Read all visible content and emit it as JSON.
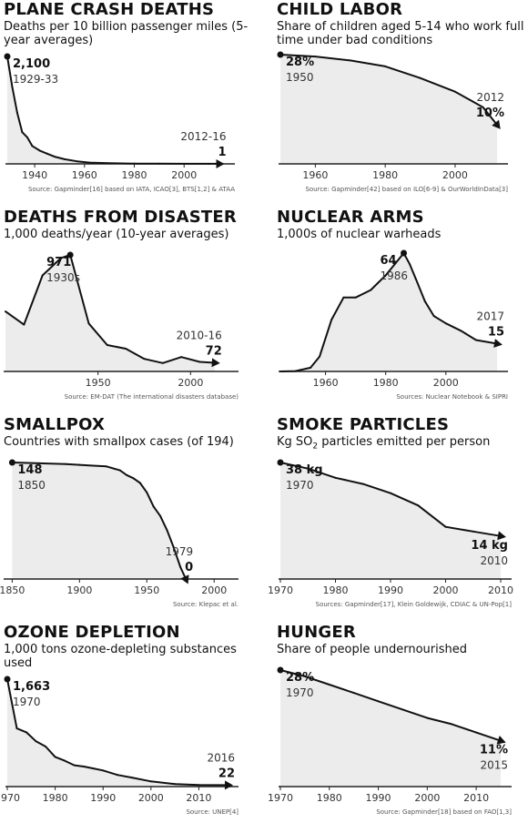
{
  "chart_data": [
    {
      "type": "area",
      "title": "PLANE CRASH DEATHS",
      "subtitle": "Deaths per 10 billion passenger miles (5-year averages)",
      "x": [
        1929,
        1931,
        1933,
        1935,
        1937,
        1939,
        1942,
        1945,
        1948,
        1952,
        1957,
        1962,
        1970,
        1980,
        1990,
        2000,
        2010,
        2014
      ],
      "values": [
        2100,
        1500,
        1000,
        620,
        520,
        350,
        260,
        200,
        140,
        90,
        50,
        25,
        12,
        6,
        4,
        2,
        1,
        1
      ],
      "xlim": [
        1929,
        2016
      ],
      "ylim": [
        0,
        2100
      ],
      "xticks": [
        "1940",
        "1960",
        "1980",
        "2000"
      ],
      "xtick_values": [
        1940,
        1960,
        1980,
        2000
      ],
      "start_label": {
        "value": "2,100",
        "note": "1929-33"
      },
      "end_label": {
        "value": "1",
        "note": "2012-16"
      },
      "source": "Source: Gapminder[16] based on IATA, ICAO[3], BTS[1,2] & ATAA"
    },
    {
      "type": "area",
      "title": "CHILD LABOR",
      "subtitle": "Share of children aged 5-14 who work full time under bad conditions",
      "x": [
        1950,
        1960,
        1970,
        1980,
        1990,
        2000,
        2005,
        2008,
        2012
      ],
      "values": [
        28,
        27.5,
        26.5,
        25,
        22,
        18.5,
        16,
        14.5,
        10
      ],
      "xlim": [
        1950,
        2012
      ],
      "ylim": [
        0,
        28
      ],
      "xticks": [
        "1960",
        "1980",
        "2000"
      ],
      "xtick_values": [
        1960,
        1980,
        2000
      ],
      "start_label": {
        "value": "28%",
        "note": "1950"
      },
      "end_label": {
        "value": "10%",
        "note": "2012"
      },
      "source": "Source: Gapminder[42] based on ILO[6-9] & OurWorldInData[3]"
    },
    {
      "type": "area",
      "title": "DEATHS FROM DISASTER",
      "subtitle": "1,000 deaths/year (10-year averages)",
      "x": [
        1900,
        1910,
        1920,
        1930,
        1935,
        1945,
        1955,
        1965,
        1975,
        1985,
        1995,
        2005,
        2013
      ],
      "values": [
        500,
        390,
        800,
        945,
        971,
        400,
        220,
        190,
        105,
        70,
        120,
        80,
        72
      ],
      "xlim": [
        1900,
        2020
      ],
      "ylim": [
        0,
        971
      ],
      "xticks": [
        "1950",
        "2000"
      ],
      "xtick_values": [
        1950,
        2000
      ],
      "start_label": {
        "value": "971",
        "note": "1930s"
      },
      "end_label": {
        "value": "72",
        "note": "2010-16"
      },
      "source": "Source: EM-DAT (The international disasters database)"
    },
    {
      "type": "area",
      "title": "NUCLEAR ARMS",
      "subtitle": "1,000s of nuclear warheads",
      "x": [
        1945,
        1950,
        1955,
        1958,
        1962,
        1966,
        1970,
        1975,
        1980,
        1983,
        1986,
        1988,
        1990,
        1993,
        1996,
        2000,
        2005,
        2010,
        2017
      ],
      "values": [
        0,
        0.2,
        2,
        8,
        28,
        40,
        40,
        44,
        52,
        58,
        64,
        58,
        50,
        38,
        30,
        26,
        22,
        17,
        15
      ],
      "xlim": [
        1945,
        2017
      ],
      "ylim": [
        0,
        64
      ],
      "xticks": [
        "1960",
        "1980",
        "2000"
      ],
      "xtick_values": [
        1960,
        1980,
        2000
      ],
      "start_label": {
        "value": "64",
        "note": "1986"
      },
      "end_label": {
        "value": "15",
        "note": "2017"
      },
      "source": "Sources: Nuclear Notebook & SIPRI"
    },
    {
      "type": "area",
      "title": "SMALLPOX",
      "subtitle": "Countries with smallpox cases (of 194)",
      "x": [
        1850,
        1870,
        1890,
        1900,
        1910,
        1920,
        1930,
        1935,
        1940,
        1945,
        1950,
        1955,
        1960,
        1965,
        1970,
        1975,
        1979
      ],
      "values": [
        148,
        147,
        146,
        145,
        144,
        143,
        138,
        132,
        128,
        122,
        110,
        92,
        80,
        62,
        40,
        15,
        0
      ],
      "xlim": [
        1845,
        2010
      ],
      "ylim": [
        0,
        148
      ],
      "xticks": [
        "1850",
        "1900",
        "1950",
        "2000"
      ],
      "xtick_values": [
        1850,
        1900,
        1950,
        2000
      ],
      "start_label": {
        "value": "148",
        "note": "1850"
      },
      "end_label": {
        "value": "0",
        "note": "1979"
      },
      "source": "Source: Klepac et al."
    },
    {
      "type": "area",
      "title": "SMOKE PARTICLES",
      "subtitle": "Kg SO2 particles emitted per person",
      "x": [
        1970,
        1975,
        1980,
        1985,
        1990,
        1995,
        2000,
        2005,
        2010
      ],
      "values": [
        38,
        36,
        33,
        31,
        28,
        24,
        17,
        15.5,
        14
      ],
      "xlim": [
        1970,
        2010
      ],
      "ylim": [
        0,
        38
      ],
      "xticks": [
        "1970",
        "1980",
        "1990",
        "2000",
        "2010"
      ],
      "xtick_values": [
        1970,
        1980,
        1990,
        2000,
        2010
      ],
      "start_label": {
        "value": "38 kg",
        "note": "1970"
      },
      "end_label": {
        "value": "14 kg",
        "note": "2010"
      },
      "source": "Sources: Gapminder[17], Klein Goldewijk, CDIAC & UN-Pop[1]"
    },
    {
      "type": "area",
      "title": "OZONE DEPLETION",
      "subtitle": "1,000 tons ozone-depleting substances used",
      "x": [
        1970,
        1972,
        1974,
        1976,
        1978,
        1980,
        1982,
        1984,
        1986,
        1988,
        1990,
        1993,
        1996,
        2000,
        2005,
        2010,
        2016
      ],
      "values": [
        1663,
        900,
        840,
        700,
        620,
        460,
        400,
        330,
        310,
        280,
        250,
        180,
        140,
        80,
        40,
        25,
        22
      ],
      "xlim": [
        1970,
        2016
      ],
      "ylim": [
        0,
        1663
      ],
      "xticks": [
        "1970",
        "1980",
        "1990",
        "2000",
        "2010"
      ],
      "xtick_values": [
        1970,
        1980,
        1990,
        2000,
        2010
      ],
      "start_label": {
        "value": "1,663",
        "note": "1970"
      },
      "end_label": {
        "value": "22",
        "note": "2016"
      },
      "source": "Source: UNEP[4]"
    },
    {
      "type": "area",
      "title": "HUNGER",
      "subtitle": "Share of people undernourished",
      "x": [
        1970,
        1975,
        1980,
        1985,
        1990,
        1995,
        2000,
        2005,
        2010,
        2015
      ],
      "values": [
        28,
        26.5,
        24.5,
        22.5,
        20.5,
        18.5,
        16.5,
        15,
        13,
        11
      ],
      "xlim": [
        1970,
        2015
      ],
      "ylim": [
        0,
        28
      ],
      "xticks": [
        "1970",
        "1980",
        "1990",
        "2000",
        "2010"
      ],
      "xtick_values": [
        1970,
        1980,
        1990,
        2000,
        2010
      ],
      "start_label": {
        "value": "28%",
        "note": "1970"
      },
      "end_label": {
        "value": "11%",
        "note": "2015"
      },
      "source": "Source: Gapminder[18] based on FAO[1,3]"
    }
  ]
}
